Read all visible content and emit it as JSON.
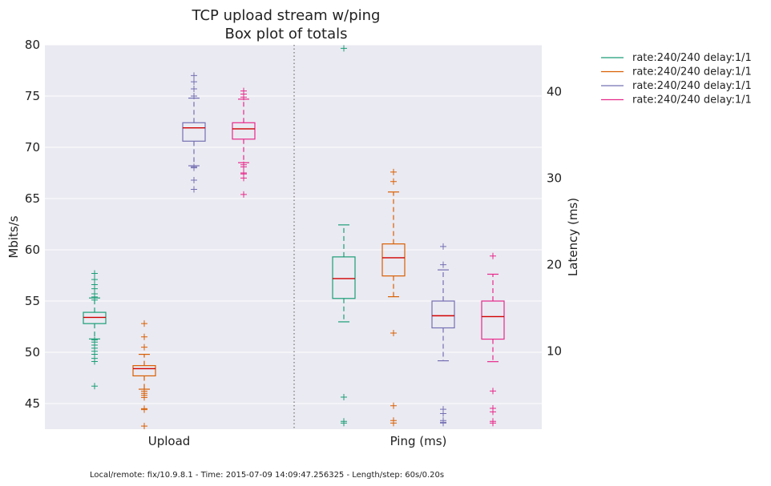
{
  "chart_data": {
    "type": "box",
    "title": "TCP upload stream w/ping",
    "subtitle": "Box plot of totals",
    "categories": [
      "Upload",
      "Ping (ms)"
    ],
    "y_left": {
      "label": "Mbits/s",
      "range": [
        42.5,
        80
      ],
      "ticks": [
        45,
        50,
        55,
        60,
        65,
        70,
        75,
        80
      ]
    },
    "y_right": {
      "label": "Latency (ms)",
      "range": [
        1,
        45.4
      ],
      "ticks": [
        10,
        20,
        30,
        40
      ]
    },
    "legend_position": "right, outside plot",
    "footer": "Local/remote: fix/10.9.8.1 - Time: 2015-07-09 14:09:47.256325 - Length/step: 60s/0.20s",
    "series": [
      {
        "name": "rate:240/240 delay:1/1",
        "color": "#1b9e77",
        "upload": {
          "whisker_low": 51.3,
          "q1": 52.8,
          "median": 53.4,
          "q3": 53.9,
          "whisker_high": 55.3,
          "outliers": [
            57.7,
            57.1,
            56.6,
            56.2,
            55.7,
            55.4,
            55.1,
            51.2,
            51.0,
            50.7,
            50.4,
            50.1,
            49.8,
            49.4,
            49.1,
            46.7
          ]
        },
        "ping": {
          "whisker_low": 13.4,
          "q1": 16.1,
          "median": 18.4,
          "q3": 20.9,
          "whisker_high": 24.6,
          "outliers": [
            45.0,
            4.7,
            1.9,
            1.7
          ]
        }
      },
      {
        "name": "rate:240/240 delay:1/1",
        "color": "#d95f02",
        "upload": {
          "whisker_low": 46.4,
          "q1": 47.7,
          "median": 48.4,
          "q3": 48.7,
          "whisker_high": 49.8,
          "outliers": [
            52.8,
            51.5,
            50.5,
            46.2,
            46.0,
            45.8,
            45.6,
            44.5,
            44.4,
            42.8
          ]
        },
        "ping": {
          "whisker_low": 16.3,
          "q1": 18.7,
          "median": 20.8,
          "q3": 22.4,
          "whisker_high": 28.4,
          "outliers": [
            30.7,
            29.6,
            12.1,
            3.7,
            2.0,
            1.7
          ]
        }
      },
      {
        "name": "rate:240/240 delay:1/1",
        "color": "#7570b3",
        "upload": {
          "whisker_low": 68.2,
          "q1": 70.6,
          "median": 71.9,
          "q3": 72.4,
          "whisker_high": 74.8,
          "outliers": [
            77.0,
            76.4,
            75.7,
            75.0,
            68.1,
            68.0,
            66.8,
            65.9
          ]
        },
        "ping": {
          "whisker_low": 8.9,
          "q1": 12.7,
          "median": 14.1,
          "q3": 15.8,
          "whisker_high": 19.4,
          "outliers": [
            22.1,
            20.0,
            3.3,
            2.8,
            2.0,
            1.8,
            1.7
          ]
        }
      },
      {
        "name": "rate:240/240 delay:1/1",
        "color": "#e7298a",
        "upload": {
          "whisker_low": 68.5,
          "q1": 70.8,
          "median": 71.8,
          "q3": 72.4,
          "whisker_high": 74.7,
          "outliers": [
            75.5,
            75.2,
            74.9,
            68.3,
            68.1,
            67.5,
            67.4,
            67.0,
            65.4
          ]
        },
        "ping": {
          "whisker_low": 8.8,
          "q1": 11.4,
          "median": 14.0,
          "q3": 15.8,
          "whisker_high": 18.9,
          "outliers": [
            21.0,
            5.4,
            3.4,
            3.0,
            1.9,
            1.7
          ]
        }
      }
    ]
  }
}
